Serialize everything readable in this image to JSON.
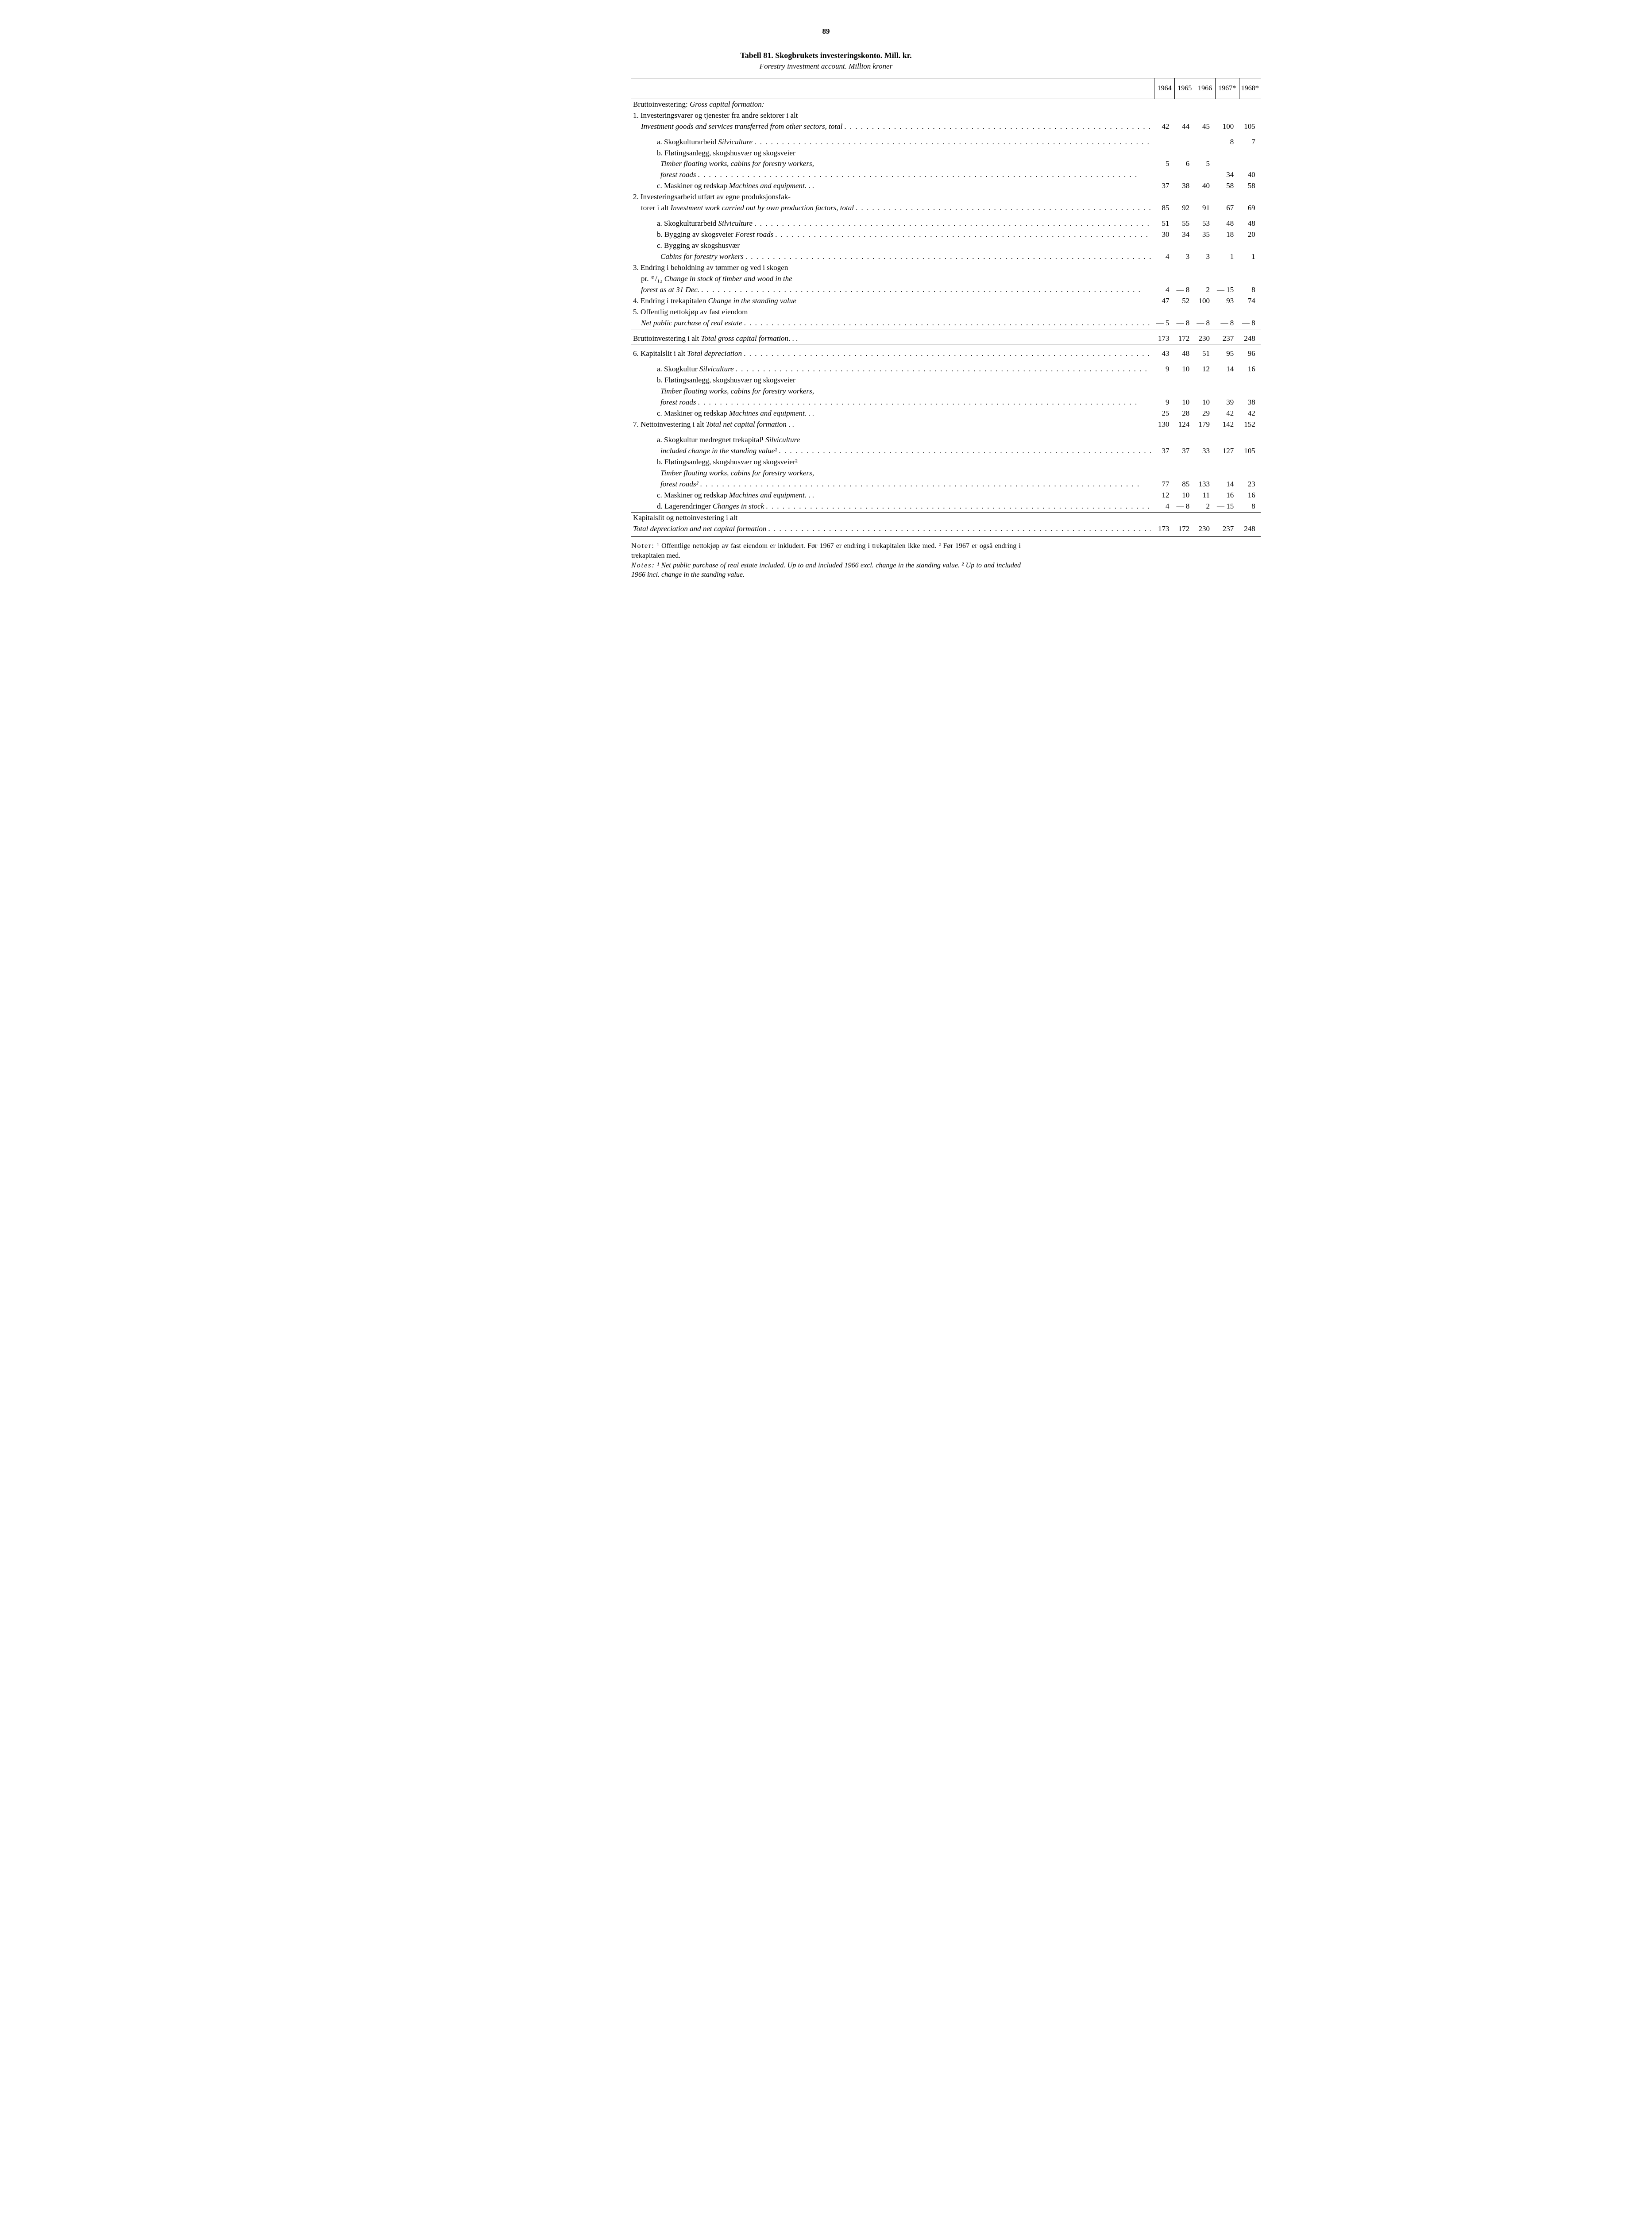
{
  "page_number": "89",
  "title": "Tabell 81. Skogbrukets investeringskonto. Mill. kr.",
  "subtitle": "Forestry investment account. Million kroner",
  "years": [
    "1964",
    "1965",
    "1966",
    "1967*",
    "1968*"
  ],
  "rows": [
    {
      "type": "text",
      "indent": 0,
      "label": "Bruttoinvestering: ",
      "em_after": "Gross capital formation:"
    },
    {
      "type": "text",
      "indent": 0,
      "label": "1.  Investeringsvarer og tjenester fra andre sektorer i alt"
    },
    {
      "type": "data",
      "indent": 1,
      "label_em": "Investment goods and services transferred from other sectors, total",
      "dots": true,
      "vals": [
        "42",
        "44",
        "45",
        "100",
        "105"
      ],
      "section": false
    },
    {
      "type": "gap"
    },
    {
      "type": "data",
      "indent": 2,
      "label": "a.  Skogkulturarbeid ",
      "em": "Silviculture",
      "dots": true,
      "vals": [
        "",
        "",
        "",
        "8",
        "7"
      ]
    },
    {
      "type": "text",
      "indent": 2,
      "label": "b.  Fløtingsanlegg, skogshusvær og skogsveier"
    },
    {
      "type": "data",
      "indent": 3,
      "label_em": "Timber floating works, cabins for forestry workers,",
      "vals": [
        "5",
        "6",
        "5",
        "",
        ""
      ],
      "brace": true
    },
    {
      "type": "data",
      "indent": 3,
      "label_em": "forest roads",
      "dots": true,
      "vals": [
        "",
        "",
        "",
        "34",
        "40"
      ]
    },
    {
      "type": "data",
      "indent": 2,
      "label": "c.  Maskiner og redskap ",
      "em": "Machines and equipment",
      "trail": ". . .",
      "vals": [
        "37",
        "38",
        "40",
        "58",
        "58"
      ]
    },
    {
      "type": "text",
      "indent": 0,
      "label": "2.  Investeringsarbeid utført av egne produksjonsfak-"
    },
    {
      "type": "data",
      "indent": 1,
      "label": "torer i alt ",
      "em": "Investment work carried out by own production factors, total",
      "dots": true,
      "vals": [
        "85",
        "92",
        "91",
        "67",
        "69"
      ]
    },
    {
      "type": "gap"
    },
    {
      "type": "data",
      "indent": 2,
      "label": "a.  Skogkulturarbeid ",
      "em": "Silviculture",
      "dots": true,
      "vals": [
        "51",
        "55",
        "53",
        "48",
        "48"
      ]
    },
    {
      "type": "data",
      "indent": 2,
      "label": "b.  Bygging av skogsveier ",
      "em": "Forest roads",
      "dots": true,
      "vals": [
        "30",
        "34",
        "35",
        "18",
        "20"
      ]
    },
    {
      "type": "text",
      "indent": 2,
      "label": "c.  Bygging av skogshusvær"
    },
    {
      "type": "data",
      "indent": 3,
      "label_em": "Cabins for forestry workers",
      "dots": true,
      "vals": [
        "4",
        "3",
        "3",
        "1",
        "1"
      ]
    },
    {
      "type": "text",
      "indent": 0,
      "label": "3.  Endring i beholdning av tømmer og ved i skogen"
    },
    {
      "type": "text",
      "indent": 1,
      "label": "pr. ³¹/₁₂ ",
      "em": "Change in stock of timber and wood in the"
    },
    {
      "type": "data",
      "indent": 1,
      "label_em": "forest as at 31 Dec.",
      "dots": true,
      "vals": [
        "4",
        "— 8",
        "2",
        "— 15",
        "8"
      ]
    },
    {
      "type": "data",
      "indent": 0,
      "label": "4.  Endring i trekapitalen ",
      "em": "Change in the standing value",
      "vals": [
        "47",
        "52",
        "100",
        "93",
        "74"
      ]
    },
    {
      "type": "text",
      "indent": 0,
      "label": "5.  Offentlig nettokjøp av fast eiendom"
    },
    {
      "type": "data",
      "indent": 1,
      "label_em": "Net public purchase of real estate",
      "dots": true,
      "vals": [
        "— 5",
        "— 8",
        "— 8",
        "— 8",
        "— 8"
      ]
    },
    {
      "type": "rule"
    },
    {
      "type": "data",
      "indent": 0,
      "label": "Bruttoinvestering i alt ",
      "em": "Total gross capital formation",
      "trail": ". . .",
      "vals": [
        "173",
        "172",
        "230",
        "237",
        "248"
      ],
      "section": true
    },
    {
      "type": "rule"
    },
    {
      "type": "data",
      "indent": 0,
      "label": "6.  Kapitalslit i alt ",
      "em": "Total depreciation",
      "dots": true,
      "vals": [
        "43",
        "48",
        "51",
        "95",
        "96"
      ],
      "section": true
    },
    {
      "type": "gap"
    },
    {
      "type": "data",
      "indent": 2,
      "label": "a.  Skogkultur ",
      "em": "Silviculture",
      "dots": true,
      "vals": [
        "9",
        "10",
        "12",
        "14",
        "16"
      ]
    },
    {
      "type": "text",
      "indent": 2,
      "label": "b.  Fløtingsanlegg, skogshusvær og skogsveier"
    },
    {
      "type": "text",
      "indent": 3,
      "label_em": "Timber floating works, cabins for forestry workers,"
    },
    {
      "type": "data",
      "indent": 3,
      "label_em": "forest roads",
      "dots": true,
      "vals": [
        "9",
        "10",
        "10",
        "39",
        "38"
      ]
    },
    {
      "type": "data",
      "indent": 2,
      "label": "c.  Maskiner og redskap ",
      "em": "Machines and equipment",
      "trail": ". . .",
      "vals": [
        "25",
        "28",
        "29",
        "42",
        "42"
      ]
    },
    {
      "type": "data",
      "indent": 0,
      "label": "7.  Nettoinvestering i alt ",
      "em": "Total net capital formation",
      "trail": " . .",
      "vals": [
        "130",
        "124",
        "179",
        "142",
        "152"
      ]
    },
    {
      "type": "gap"
    },
    {
      "type": "text",
      "indent": 2,
      "label": "a.  Skogkultur medregnet trekapital¹ ",
      "em": "Silviculture"
    },
    {
      "type": "data",
      "indent": 3,
      "label_em": "included change in the standing value¹",
      "dots": true,
      "vals": [
        "37",
        "37",
        "33",
        "127",
        "105"
      ]
    },
    {
      "type": "text",
      "indent": 2,
      "label": "b.  Fløtingsanlegg, skogshusvær og skogsveier²"
    },
    {
      "type": "text",
      "indent": 3,
      "label_em": "Timber floating works, cabins for forestry workers,"
    },
    {
      "type": "data",
      "indent": 3,
      "label_em": "forest roads²",
      "dots": true,
      "vals": [
        "77",
        "85",
        "133",
        "14",
        "23"
      ]
    },
    {
      "type": "data",
      "indent": 2,
      "label": "c.  Maskiner og redskap ",
      "em": "Machines and equipment",
      "trail": ". . .",
      "vals": [
        "12",
        "10",
        "11",
        "16",
        "16"
      ]
    },
    {
      "type": "data",
      "indent": 2,
      "label": "d.  Lagerendringer ",
      "em": "Changes in stock",
      "dots": true,
      "vals": [
        "4",
        "— 8",
        "2",
        "— 15",
        "8"
      ]
    },
    {
      "type": "rule"
    },
    {
      "type": "text",
      "indent": 0,
      "label": "Kapitalslit og nettoinvestering i alt"
    },
    {
      "type": "data",
      "indent": 0,
      "label_em": "Total depreciation and net capital formation",
      "dots": true,
      "vals": [
        "173",
        "172",
        "230",
        "237",
        "248"
      ],
      "bottom": true
    }
  ],
  "notes_no_lead": "Noter:",
  "notes_no": " ¹ Offentlige nettokjøp av fast eiendom er inkludert. Før 1967 er endring i trekapitalen ikke med.   ² Før 1967 er også endring i trekapitalen med.",
  "notes_en_lead": "Notes:",
  "notes_en": "   ¹ Net public purchase of real estate included. Up to and included 1966 excl. change in the standing value.   ² Up to and included 1966 incl. change in the standing value."
}
